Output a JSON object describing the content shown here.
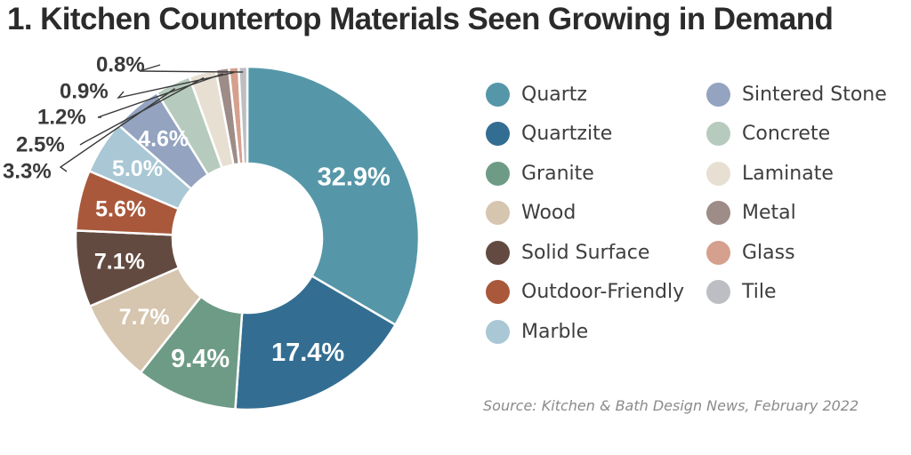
{
  "chart_data": {
    "type": "pie",
    "title": "1. Kitchen Countertop Materials Seen Growing in Demand",
    "slices": [
      {
        "name": "Quartz",
        "value": 32.9,
        "label": "32.9%",
        "color": "#5597a8"
      },
      {
        "name": "Quartzite",
        "value": 17.4,
        "label": "17.4%",
        "color": "#336e92"
      },
      {
        "name": "Granite",
        "value": 9.4,
        "label": "9.4%",
        "color": "#6e9b86"
      },
      {
        "name": "Wood",
        "value": 7.7,
        "label": "7.7%",
        "color": "#d6c5af"
      },
      {
        "name": "Solid Surface",
        "value": 7.1,
        "label": "7.1%",
        "color": "#634a40"
      },
      {
        "name": "Outdoor-Friendly",
        "value": 5.6,
        "label": "5.6%",
        "color": "#a9583b"
      },
      {
        "name": "Marble",
        "value": 5.0,
        "label": "5.0%",
        "color": "#a9c7d4"
      },
      {
        "name": "Sintered Stone",
        "value": 4.6,
        "label": "4.6%",
        "color": "#93a3c0"
      },
      {
        "name": "Concrete",
        "value": 3.3,
        "label": "3.3%",
        "color": "#b6cbbd"
      },
      {
        "name": "Laminate",
        "value": 2.5,
        "label": "2.5%",
        "color": "#e7dfd2"
      },
      {
        "name": "Metal",
        "value": 1.2,
        "label": "1.2%",
        "color": "#9d8c87"
      },
      {
        "name": "Glass",
        "value": 0.9,
        "label": "0.9%",
        "color": "#d5a08d"
      },
      {
        "name": "Tile",
        "value": 0.8,
        "label": "0.8%",
        "color": "#bdbec3"
      }
    ],
    "legend_placement": "right"
  },
  "source": "Source: Kitchen & Bath Design News, February 2022"
}
